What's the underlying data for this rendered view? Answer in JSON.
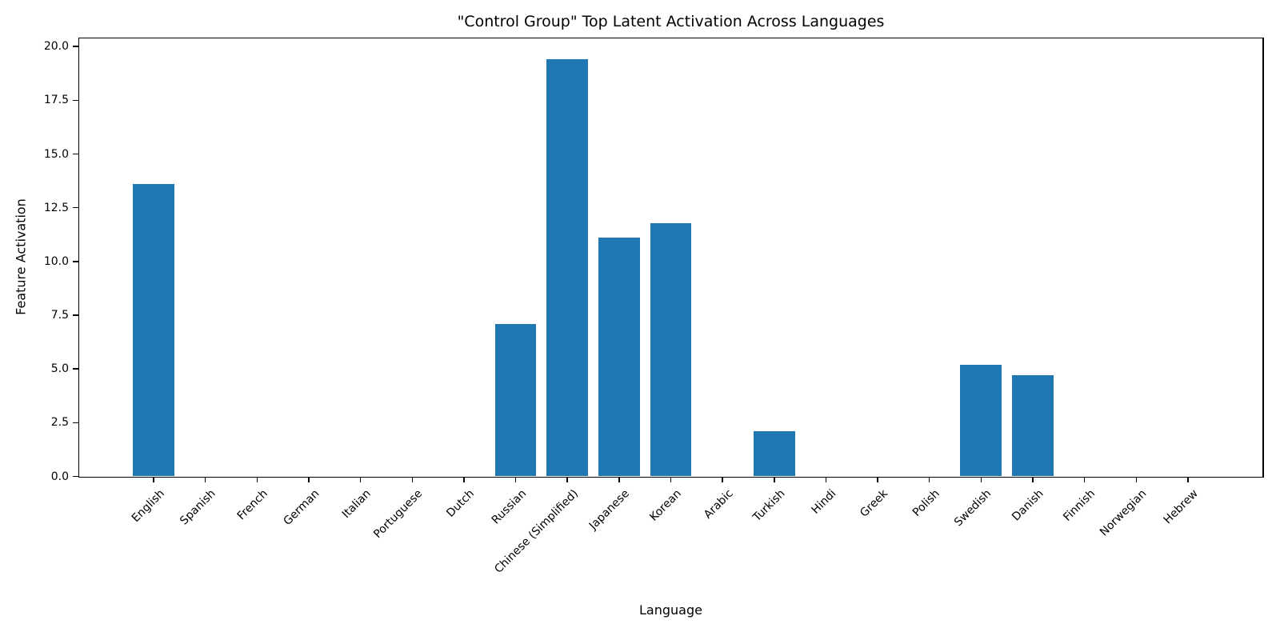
{
  "chart_data": {
    "type": "bar",
    "title": "\"Control Group\" Top Latent Activation Across Languages",
    "xlabel": "Language",
    "ylabel": "Feature Activation",
    "categories": [
      "English",
      "Spanish",
      "French",
      "German",
      "Italian",
      "Portuguese",
      "Dutch",
      "Russian",
      "Chinese (Simplified)",
      "Japanese",
      "Korean",
      "Arabic",
      "Turkish",
      "Hindi",
      "Greek",
      "Polish",
      "Swedish",
      "Danish",
      "Finnish",
      "Norwegian",
      "Hebrew"
    ],
    "values": [
      13.6,
      0,
      0,
      0,
      0,
      0,
      0,
      7.1,
      19.4,
      11.1,
      11.8,
      0,
      2.1,
      0,
      0,
      0,
      5.2,
      4.7,
      0,
      0,
      0
    ],
    "yticks": [
      0.0,
      2.5,
      5.0,
      7.5,
      10.0,
      12.5,
      15.0,
      17.5,
      20.0
    ],
    "ylim": [
      0,
      20.4
    ],
    "bar_width_fraction": 0.8,
    "x_edge_pad": 1.44,
    "bar_color": "#1f77b4",
    "background_color": "#ffffff",
    "grid": false,
    "legend": null,
    "xtick_rotation_deg": 45
  }
}
